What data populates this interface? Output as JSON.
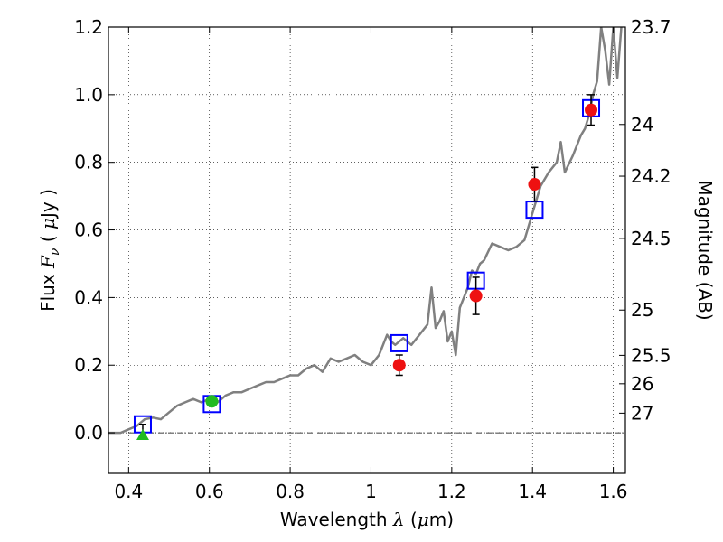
{
  "chart_data": {
    "type": "scatter",
    "xlabel": "Wavelength  λ (μm)",
    "ylabel": "Flux  Fν  ( μJy )",
    "y2label": "Magnitude (AB)",
    "xlim": [
      0.35,
      1.63
    ],
    "ylim": [
      -0.12,
      1.2
    ],
    "grid": true,
    "x_ticks": [
      0.4,
      0.6,
      0.8,
      1.0,
      1.2,
      1.4,
      1.6
    ],
    "x_tick_labels": [
      "0.4",
      "0.6",
      "0.8",
      "1",
      "1.2",
      "1.4",
      "1.6"
    ],
    "y_ticks": [
      0.0,
      0.2,
      0.4,
      0.6,
      0.8,
      1.0,
      1.2
    ],
    "y_tick_labels": [
      "0.0",
      "0.2",
      "0.4",
      "0.6",
      "0.8",
      "1.0",
      "1.2"
    ],
    "mag_axis": [
      {
        "flux": 1.2,
        "label": "23.7"
      },
      {
        "flux": 0.912,
        "label": "24"
      },
      {
        "flux": 0.759,
        "label": "24.2"
      },
      {
        "flux": 0.575,
        "label": "24.5"
      },
      {
        "flux": 0.363,
        "label": "25"
      },
      {
        "flux": 0.229,
        "label": "25.5"
      },
      {
        "flux": 0.145,
        "label": "26"
      },
      {
        "flux": 0.058,
        "label": "27"
      }
    ],
    "series": [
      {
        "kind": "model_spectrum",
        "color": "#808080",
        "x": [
          0.35,
          0.38,
          0.4,
          0.42,
          0.44,
          0.46,
          0.48,
          0.5,
          0.52,
          0.54,
          0.56,
          0.58,
          0.6,
          0.62,
          0.64,
          0.66,
          0.68,
          0.7,
          0.72,
          0.74,
          0.76,
          0.78,
          0.8,
          0.82,
          0.84,
          0.86,
          0.88,
          0.9,
          0.92,
          0.94,
          0.96,
          0.98,
          1.0,
          1.02,
          1.04,
          1.05,
          1.06,
          1.08,
          1.1,
          1.12,
          1.14,
          1.15,
          1.16,
          1.17,
          1.18,
          1.19,
          1.2,
          1.21,
          1.22,
          1.23,
          1.24,
          1.25,
          1.26,
          1.27,
          1.28,
          1.3,
          1.32,
          1.34,
          1.36,
          1.38,
          1.4,
          1.42,
          1.44,
          1.46,
          1.47,
          1.48,
          1.5,
          1.52,
          1.53,
          1.54,
          1.55,
          1.56,
          1.57,
          1.58,
          1.59,
          1.6,
          1.61,
          1.62
        ],
        "y": [
          0.0,
          0.0,
          0.01,
          0.02,
          0.04,
          0.045,
          0.04,
          0.06,
          0.08,
          0.09,
          0.1,
          0.09,
          0.1,
          0.09,
          0.11,
          0.12,
          0.12,
          0.13,
          0.14,
          0.15,
          0.15,
          0.16,
          0.17,
          0.17,
          0.19,
          0.2,
          0.18,
          0.22,
          0.21,
          0.22,
          0.23,
          0.21,
          0.2,
          0.23,
          0.29,
          0.27,
          0.26,
          0.28,
          0.26,
          0.29,
          0.32,
          0.43,
          0.31,
          0.33,
          0.36,
          0.27,
          0.3,
          0.23,
          0.37,
          0.4,
          0.43,
          0.48,
          0.47,
          0.5,
          0.51,
          0.56,
          0.55,
          0.54,
          0.55,
          0.57,
          0.65,
          0.73,
          0.77,
          0.8,
          0.86,
          0.77,
          0.82,
          0.88,
          0.9,
          0.94,
          1.0,
          1.04,
          1.2,
          1.13,
          1.03,
          1.2,
          1.05,
          1.2
        ]
      },
      {
        "kind": "model_photometry",
        "marker": "open-square",
        "color": "#0000ff",
        "x": [
          0.435,
          0.606,
          1.07,
          1.26,
          1.405,
          1.545
        ],
        "y": [
          0.025,
          0.085,
          0.265,
          0.45,
          0.66,
          0.96
        ]
      },
      {
        "kind": "optical_detections",
        "marker": "circle",
        "color": "#22bb22",
        "x": [
          0.606
        ],
        "y": [
          0.093
        ],
        "err": [
          0.013
        ]
      },
      {
        "kind": "optical_upper_limit",
        "marker": "triangle",
        "color": "#22bb22",
        "x": [
          0.435
        ],
        "y": [
          -0.005
        ],
        "err_up": [
          0.03
        ]
      },
      {
        "kind": "nir_detections",
        "marker": "circle",
        "color": "#ee1111",
        "x": [
          1.07,
          1.26,
          1.405,
          1.545
        ],
        "y": [
          0.2,
          0.405,
          0.735,
          0.955
        ],
        "err": [
          0.03,
          0.055,
          0.05,
          0.045
        ]
      }
    ]
  }
}
